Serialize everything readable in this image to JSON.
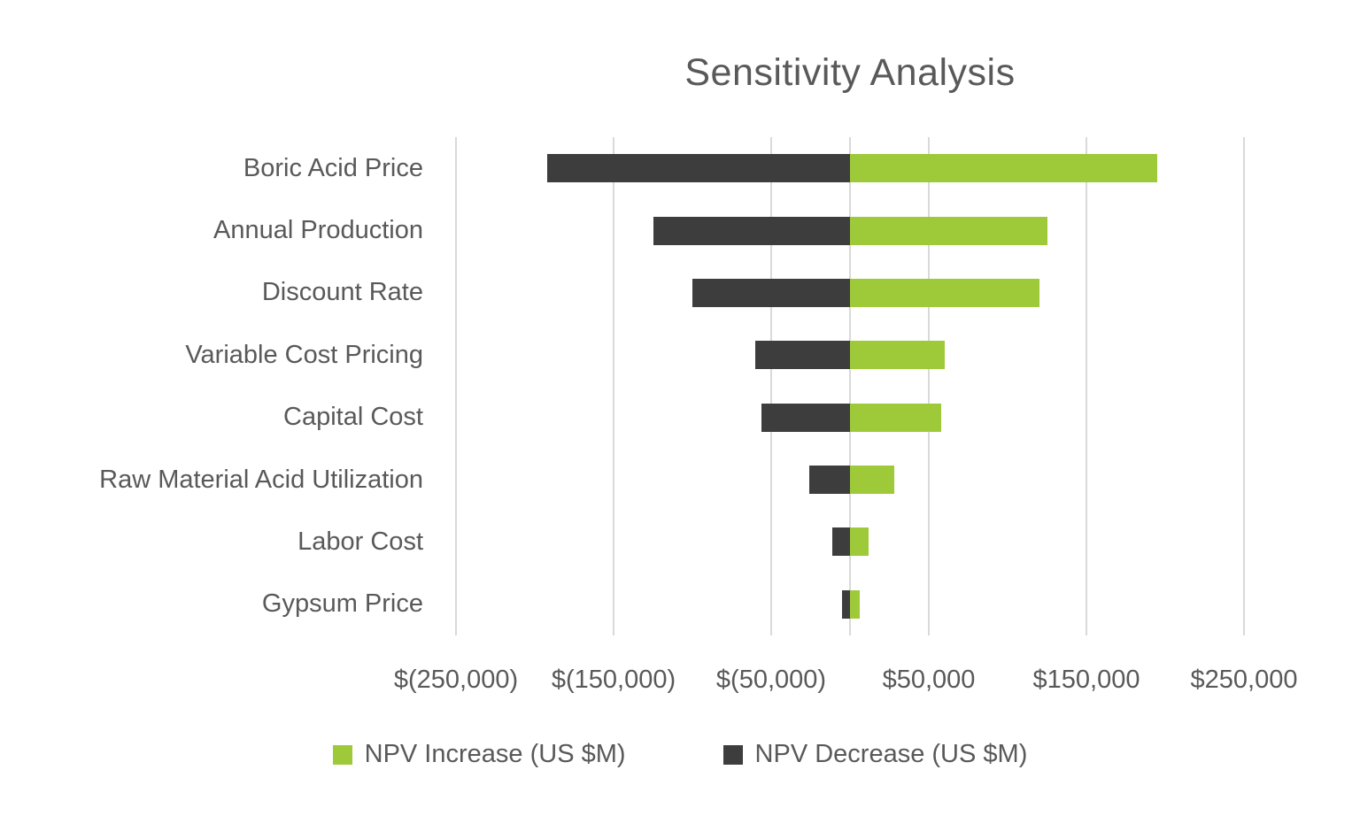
{
  "chart_data": {
    "type": "bar",
    "orientation": "horizontal",
    "title": "Sensitivity Analysis",
    "categories": [
      "Boric Acid Price",
      "Annual Production",
      "Discount Rate",
      "Variable Cost Pricing",
      "Capital Cost",
      "Raw Material Acid Utilization",
      "Labor Cost",
      "Gypsum Price"
    ],
    "series": [
      {
        "name": "NPV Increase (US $M)",
        "color": "#9eca3a",
        "values": [
          195000,
          125000,
          120000,
          60000,
          58000,
          28000,
          12000,
          6000
        ]
      },
      {
        "name": "NPV Decrease (US $M)",
        "color": "#3d3d3d",
        "values": [
          -192000,
          -125000,
          -100000,
          -60000,
          -56000,
          -26000,
          -11000,
          -5000
        ]
      }
    ],
    "xlim": [
      -250000,
      250000
    ],
    "xticks": {
      "values": [
        -250000,
        -150000,
        -50000,
        50000,
        150000,
        250000
      ],
      "labels": [
        "$(250,000)",
        "$(150,000)",
        "$(50,000)",
        "$50,000",
        "$150,000",
        "$250,000"
      ]
    },
    "grid": true,
    "legend_position": "bottom",
    "colors": {
      "text": "#595959",
      "grid": "#d9d9d9",
      "background": "#ffffff"
    }
  }
}
